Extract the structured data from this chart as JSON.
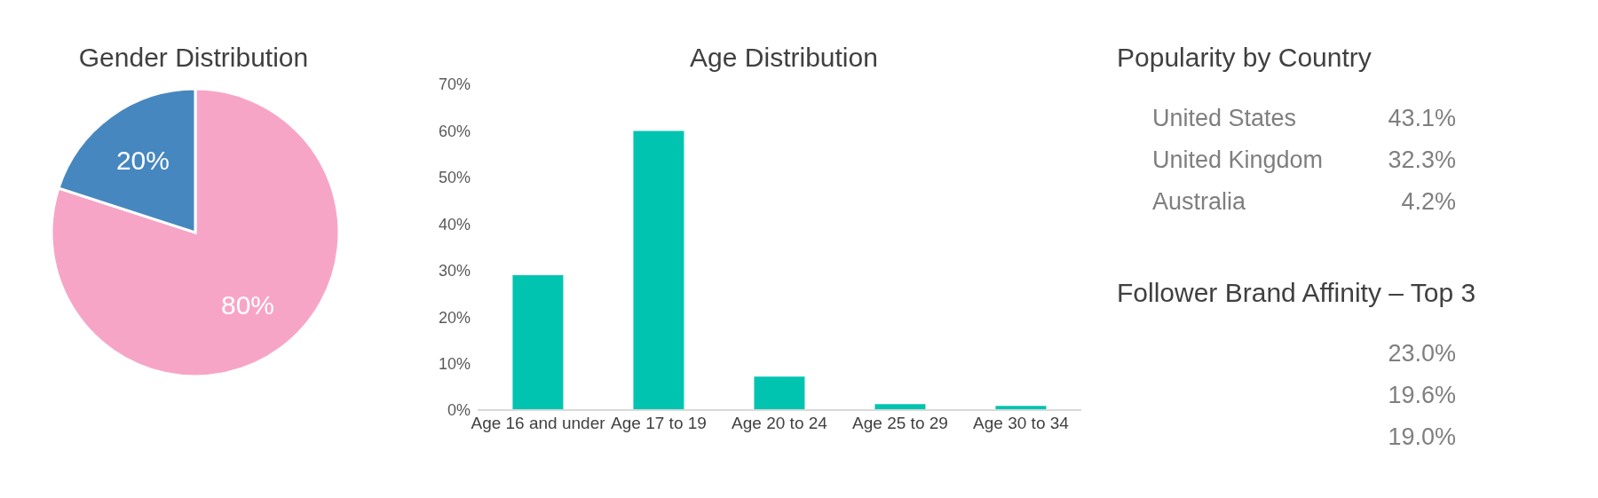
{
  "chart_data": [
    {
      "type": "pie",
      "title": "Gender Distribution",
      "categories": [
        null,
        null
      ],
      "values": [
        80,
        20
      ],
      "colors": [
        "#f7a5c7",
        "#4787bf"
      ],
      "value_labels": [
        "80%",
        "20%"
      ]
    },
    {
      "type": "bar",
      "title": "Age Distribution",
      "categories": [
        "Age 16 and under",
        "Age 17 to 19",
        "Age 20 to 24",
        "Age 25 to 29",
        "Age 30 to 34"
      ],
      "values": [
        29,
        60,
        7.2,
        1.3,
        0.9
      ],
      "color": "#00c4b0",
      "ylim": [
        0,
        70
      ],
      "yticks": [
        {
          "value": 0,
          "label": "0%"
        },
        {
          "value": 10,
          "label": "10%"
        },
        {
          "value": 20,
          "label": "20%"
        },
        {
          "value": 30,
          "label": "30%"
        },
        {
          "value": 40,
          "label": "40%"
        },
        {
          "value": 50,
          "label": "50%"
        },
        {
          "value": 60,
          "label": "60%"
        },
        {
          "value": 70,
          "label": "70%"
        }
      ]
    },
    {
      "type": "other",
      "title": "Popularity by Country",
      "categories": [
        "United States",
        "United Kingdom",
        "Australia"
      ],
      "values": [
        43.1,
        32.3,
        4.2
      ],
      "value_labels": [
        "43.1%",
        "32.3%",
        "4.2%"
      ]
    },
    {
      "type": "other",
      "title": "Follower Brand Affinity – Top 3",
      "categories": [
        null,
        null,
        null
      ],
      "values": [
        23.0,
        19.6,
        19.0
      ],
      "value_labels": [
        "23.0%",
        "19.6%",
        "19.0%"
      ]
    }
  ]
}
